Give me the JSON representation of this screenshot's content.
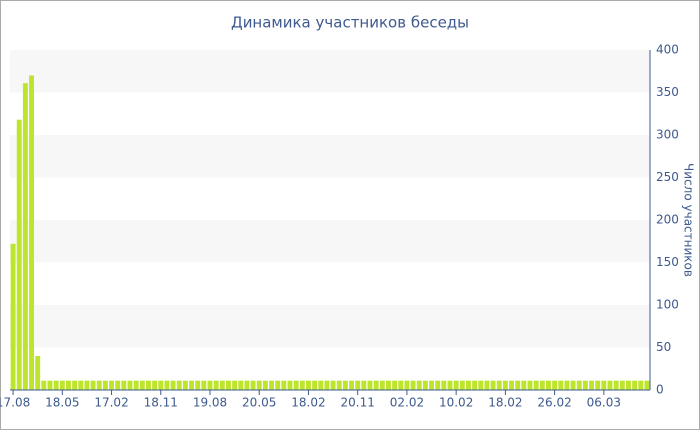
{
  "chart_data": {
    "type": "bar",
    "title": "Динамика участников беседы",
    "y_axis_label": "Число участников",
    "categories": [
      "17.08",
      null,
      null,
      null,
      null,
      null,
      null,
      null,
      "18.05",
      null,
      null,
      null,
      null,
      null,
      null,
      null,
      "17.02",
      null,
      null,
      null,
      null,
      null,
      null,
      null,
      "18.11",
      null,
      null,
      null,
      null,
      null,
      null,
      null,
      "19.08",
      null,
      null,
      null,
      null,
      null,
      null,
      null,
      "20.05",
      null,
      null,
      null,
      null,
      null,
      null,
      null,
      "18.02",
      null,
      null,
      null,
      null,
      null,
      null,
      null,
      "20.11",
      null,
      null,
      null,
      null,
      null,
      null,
      null,
      "02.02",
      null,
      null,
      null,
      null,
      null,
      null,
      null,
      "10.02",
      null,
      null,
      null,
      null,
      null,
      null,
      null,
      "18.02",
      null,
      null,
      null,
      null,
      null,
      null,
      null,
      "26.02",
      null,
      null,
      null,
      null,
      null,
      null,
      null,
      "06.03",
      null,
      null,
      null,
      null,
      null,
      null,
      null
    ],
    "values": [
      172,
      318,
      361,
      370,
      40,
      11,
      11,
      11,
      11,
      11,
      11,
      11,
      11,
      11,
      11,
      11,
      11,
      11,
      11,
      11,
      11,
      11,
      11,
      11,
      11,
      11,
      11,
      11,
      11,
      11,
      11,
      11,
      11,
      11,
      11,
      11,
      11,
      11,
      11,
      11,
      11,
      11,
      11,
      11,
      11,
      11,
      11,
      11,
      11,
      11,
      11,
      11,
      11,
      11,
      11,
      11,
      11,
      11,
      11,
      11,
      11,
      11,
      11,
      11,
      11,
      11,
      11,
      11,
      11,
      11,
      11,
      11,
      11,
      11,
      11,
      11,
      11,
      11,
      11,
      11,
      11,
      11,
      11,
      11,
      11,
      11,
      11,
      11,
      11,
      11,
      11,
      11,
      11,
      11,
      11,
      11,
      11,
      11,
      11,
      11,
      11,
      11,
      11,
      11
    ],
    "color": "#bde52b",
    "ylim": [
      0,
      400
    ],
    "yticks": [
      0,
      50,
      100,
      150,
      200,
      250,
      300,
      350,
      400
    ],
    "y_axis_side": "right",
    "bands": true
  }
}
